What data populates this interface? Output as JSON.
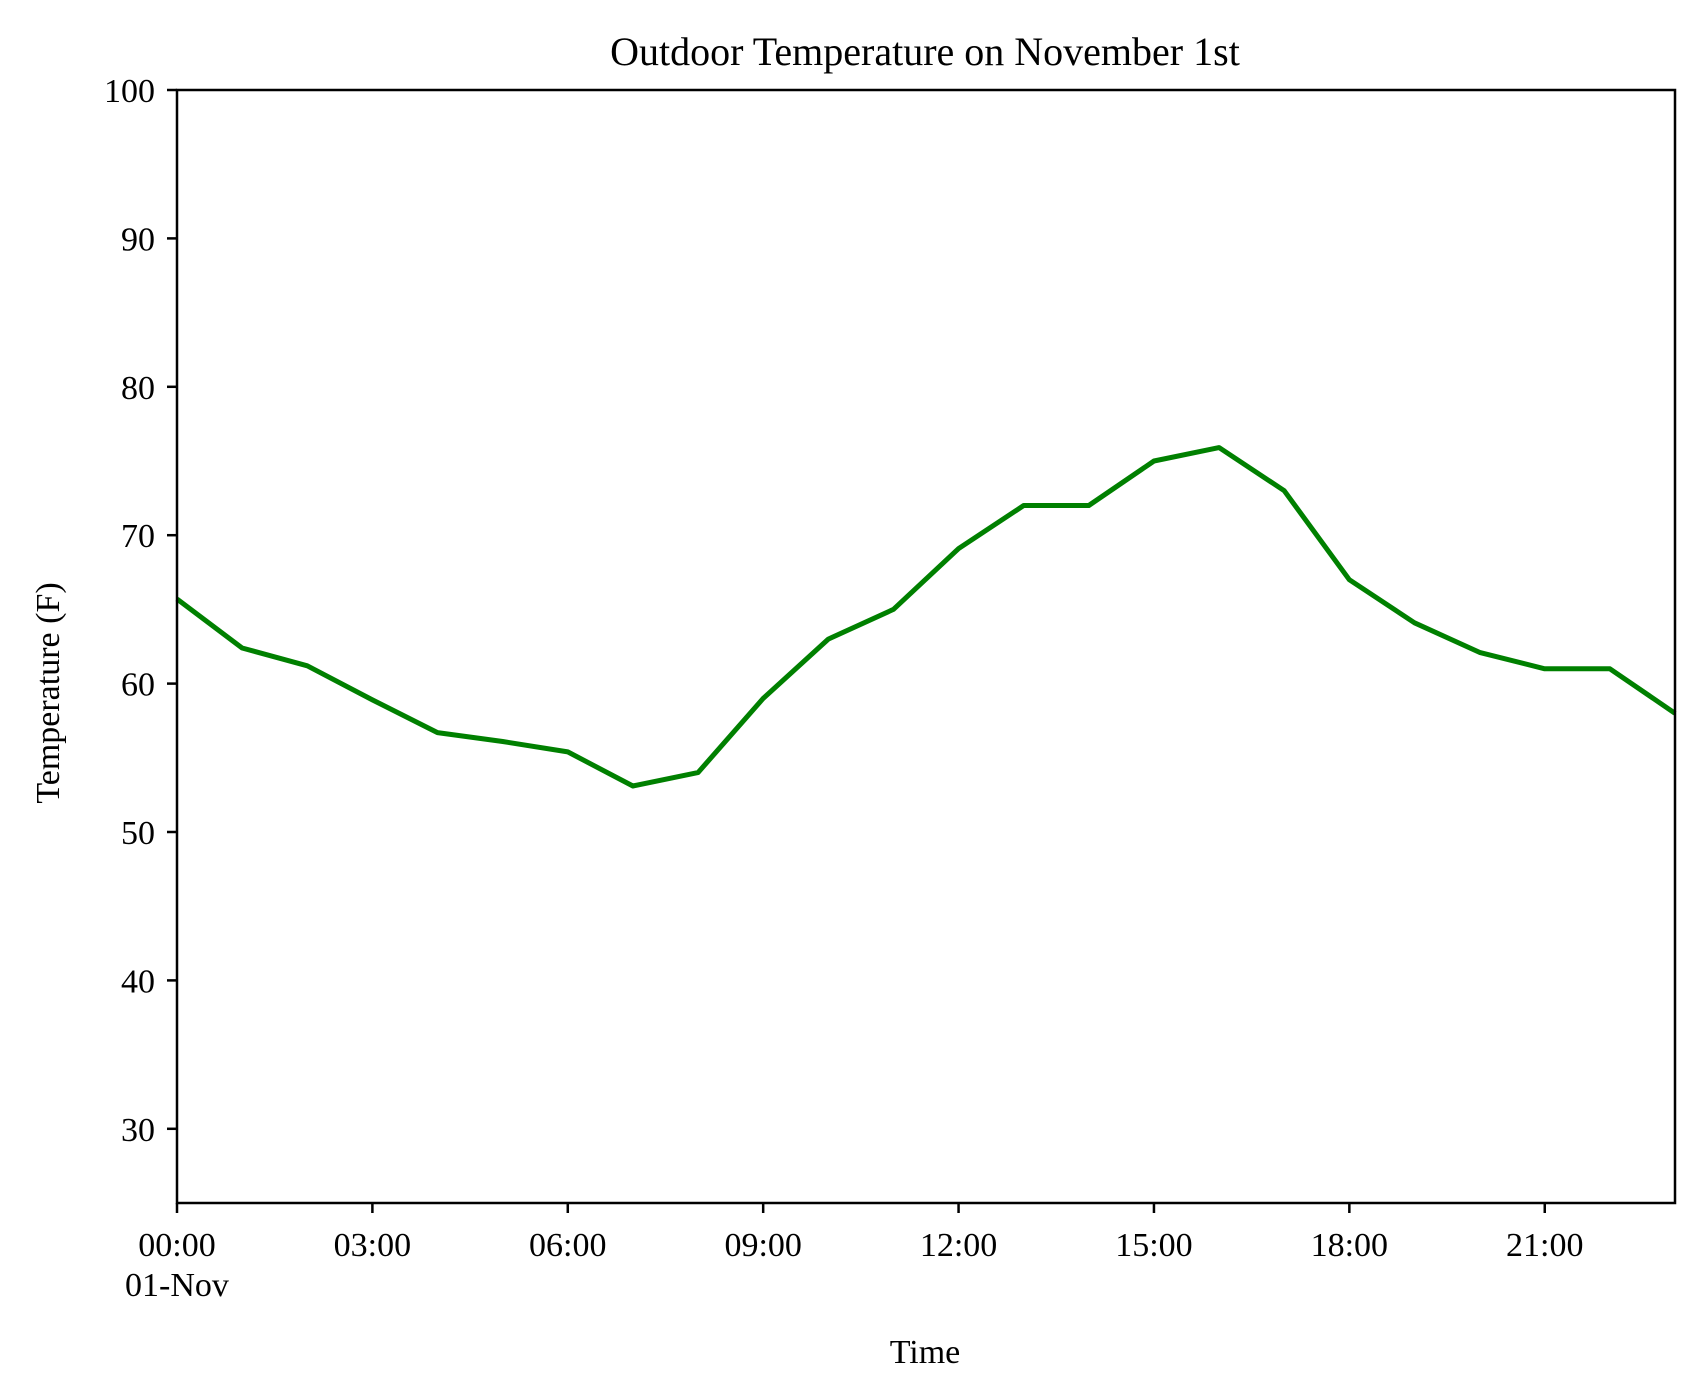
{
  "chart_data": {
    "type": "line",
    "title": "Outdoor Temperature on November 1st",
    "xlabel": "Time",
    "ylabel": "Temperature (F)",
    "ylim": [
      25,
      100
    ],
    "xlim": [
      "00:00",
      "23:00"
    ],
    "yticks": [
      30,
      40,
      50,
      60,
      70,
      80,
      90,
      100
    ],
    "xticks": [
      {
        "hour": 0,
        "label": "00:00",
        "sublabel": "01-Nov"
      },
      {
        "hour": 3,
        "label": "03:00"
      },
      {
        "hour": 6,
        "label": "06:00"
      },
      {
        "hour": 9,
        "label": "09:00"
      },
      {
        "hour": 12,
        "label": "12:00"
      },
      {
        "hour": 15,
        "label": "15:00"
      },
      {
        "hour": 18,
        "label": "18:00"
      },
      {
        "hour": 21,
        "label": "21:00"
      }
    ],
    "grid": false,
    "series": [
      {
        "color": "#008000",
        "x": [
          "00:00",
          "01:00",
          "02:00",
          "03:00",
          "04:00",
          "05:00",
          "06:00",
          "07:00",
          "08:00",
          "09:00",
          "10:00",
          "11:00",
          "12:00",
          "13:00",
          "14:00",
          "15:00",
          "16:00",
          "17:00",
          "18:00",
          "19:00",
          "20:00",
          "21:00",
          "22:00",
          "23:00"
        ],
        "values": [
          65.7,
          62.4,
          61.2,
          58.9,
          56.7,
          56.1,
          55.4,
          53.1,
          54.0,
          59.0,
          63.0,
          65.0,
          69.1,
          72.0,
          72.0,
          75.0,
          75.9,
          73.0,
          67.0,
          64.1,
          62.1,
          61.0,
          61.0,
          58.0
        ]
      }
    ]
  }
}
